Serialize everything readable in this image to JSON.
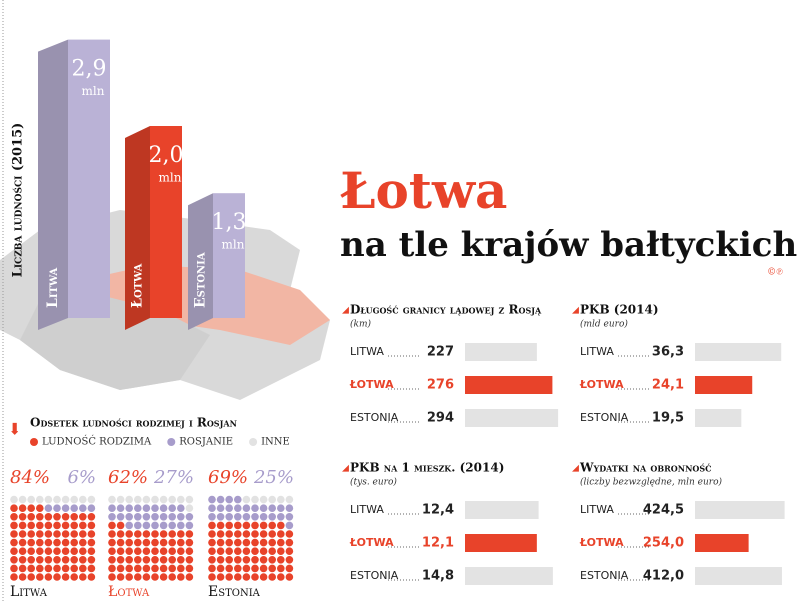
{
  "title": "Łotwa",
  "subtitle": "na tle krajów bałtyckich",
  "credit": "©℗",
  "chart_data": [
    {
      "type": "bar3d",
      "y_label": "Liczba ludności (2015)",
      "categories": [
        "Litwa",
        "Łotwa",
        "Estonia"
      ],
      "values": [
        2.9,
        2.0,
        1.3
      ],
      "value_labels": [
        "2,9",
        "2,0",
        "1,3"
      ],
      "unit": "mln",
      "colors": [
        "#bab2d6",
        "#e8432a",
        "#bab2d6"
      ],
      "ylim": [
        0,
        3
      ]
    },
    {
      "type": "waffle",
      "title": "Odsetek ludności rodzimej i Rosjan",
      "categories": [
        "Litwa",
        "Łotwa",
        "Estonia"
      ],
      "series": [
        {
          "name": "LUDNOŚĆ RODZIMA",
          "color": "#e8432a",
          "values": [
            84,
            62,
            69
          ],
          "value_labels": [
            "84%",
            "62%",
            "69%"
          ]
        },
        {
          "name": "ROSJANIE",
          "color": "#a79ccb",
          "values": [
            6,
            27,
            25
          ],
          "value_labels": [
            "6%",
            "27%",
            "25%"
          ]
        },
        {
          "name": "INNE",
          "color": "#e2e2e2",
          "values": [
            10,
            11,
            6
          ]
        }
      ]
    },
    {
      "type": "hbar",
      "title": "Długość granicy lądowej z Rosją",
      "subtitle": "(km)",
      "categories": [
        "LITWA",
        "ŁOTWA",
        "ESTONIA"
      ],
      "values": [
        227,
        276,
        294
      ],
      "colors": [
        "#e3e3e3",
        "#e8432a",
        "#e3e3e3"
      ],
      "xlim": [
        0,
        300
      ]
    },
    {
      "type": "hbar",
      "title": "PKB (2014)",
      "subtitle": "(mld euro)",
      "categories": [
        "LITWA",
        "ŁOTWA",
        "ESTONIA"
      ],
      "values": [
        36.3,
        24.1,
        19.5
      ],
      "value_labels": [
        "36,3",
        "24,1",
        "19,5"
      ],
      "colors": [
        "#e3e3e3",
        "#e8432a",
        "#e3e3e3"
      ],
      "xlim": [
        0,
        40
      ]
    },
    {
      "type": "hbar",
      "title": "PKB na 1 mieszk. (2014)",
      "subtitle": "(tys. euro)",
      "categories": [
        "LITWA",
        "ŁOTWA",
        "ESTONIA"
      ],
      "values": [
        12.4,
        12.1,
        14.8
      ],
      "value_labels": [
        "12,4",
        "12,1",
        "14,8"
      ],
      "colors": [
        "#e3e3e3",
        "#e8432a",
        "#e3e3e3"
      ],
      "xlim": [
        0,
        16
      ]
    },
    {
      "type": "hbar",
      "title": "Wydatki na obronność",
      "subtitle": "(liczby bezwzględne, mln euro)",
      "categories": [
        "LITWA",
        "ŁOTWA",
        "ESTONIA"
      ],
      "values": [
        424.5,
        254.0,
        412.0
      ],
      "value_labels": [
        "424,5",
        "254,0",
        "412,0"
      ],
      "colors": [
        "#e3e3e3",
        "#e8432a",
        "#e3e3e3"
      ],
      "xlim": [
        0,
        450
      ]
    }
  ]
}
